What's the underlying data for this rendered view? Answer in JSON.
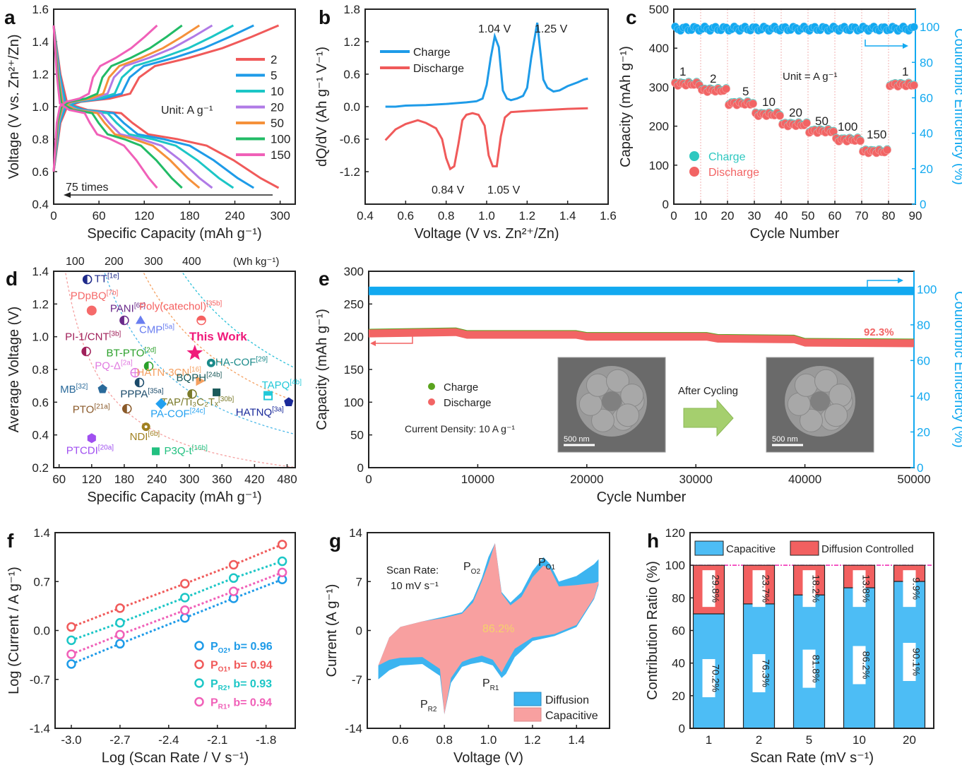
{
  "colors": {
    "red": "#f05a5a",
    "blue": "#1e9be8",
    "cyan": "#1cc6c6",
    "purple": "#b07ae6",
    "orange": "#f5913a",
    "green": "#22bb66",
    "pink": "#f060b8",
    "ce_blue": "#12a9f0",
    "charge_teal": "#2ec8c0",
    "discharge_red": "#f26464",
    "green_e": "#5aa31e",
    "bar_blue": "#4dbdf5",
    "bar_red": "#f26060",
    "cap_pink": "#f8a0a0",
    "diff_blue": "#3cb4f0"
  },
  "chart_data": [
    {
      "panel": "a",
      "type": "line",
      "panel_label": "a",
      "xlabel": "Specific Capacity (mAh g⁻¹)",
      "ylabel": "Voltage (V vs. Zn²⁺/Zn)",
      "xlim": [
        0,
        320
      ],
      "ylim": [
        0.4,
        1.6
      ],
      "xticks": [
        0,
        60,
        120,
        180,
        240,
        300
      ],
      "yticks": [
        0.4,
        0.6,
        0.8,
        1.0,
        1.2,
        1.4,
        1.6
      ],
      "annotation_unit": "Unit: A g⁻¹",
      "annotation_arrow": "75 times",
      "legend_placement": "right",
      "series": [
        {
          "name": "2",
          "color_key": "red",
          "capacity": 298
        },
        {
          "name": "5",
          "color_key": "blue",
          "capacity": 265
        },
        {
          "name": "10",
          "color_key": "cyan",
          "capacity": 238
        },
        {
          "name": "20",
          "color_key": "purple",
          "capacity": 210
        },
        {
          "name": "50",
          "color_key": "orange",
          "capacity": 193
        },
        {
          "name": "100",
          "color_key": "green",
          "capacity": 170
        },
        {
          "name": "150",
          "color_key": "pink",
          "capacity": 137
        }
      ]
    },
    {
      "panel": "b",
      "type": "line",
      "panel_label": "b",
      "xlabel": "Voltage (V vs. Zn²⁺/Zn)",
      "ylabel": "dQ/dV (Ah g⁻¹ V⁻¹)",
      "xlim": [
        0.4,
        1.6
      ],
      "ylim": [
        -1.8,
        1.8
      ],
      "xticks": [
        0.4,
        0.6,
        0.8,
        1.0,
        1.2,
        1.4,
        1.6
      ],
      "yticks": [
        -1.2,
        -0.6,
        0.0,
        0.6,
        1.2,
        1.8
      ],
      "legend_placement": "top-left",
      "series": [
        {
          "name": "Charge",
          "color_key": "blue",
          "x": [
            0.5,
            0.55,
            0.6,
            0.7,
            0.8,
            0.9,
            0.95,
            0.98,
            1.0,
            1.02,
            1.04,
            1.06,
            1.08,
            1.1,
            1.12,
            1.15,
            1.18,
            1.2,
            1.22,
            1.25,
            1.28,
            1.3,
            1.33,
            1.36,
            1.4,
            1.45,
            1.48,
            1.5
          ],
          "y": [
            0.0,
            0.0,
            0.02,
            0.03,
            0.05,
            0.08,
            0.1,
            0.15,
            0.4,
            0.9,
            1.3,
            1.1,
            0.3,
            0.15,
            0.12,
            0.15,
            0.2,
            0.35,
            0.9,
            1.55,
            0.5,
            0.35,
            0.28,
            0.3,
            0.38,
            0.45,
            0.5,
            0.52
          ]
        },
        {
          "name": "Discharge",
          "color_key": "red",
          "x": [
            0.5,
            0.55,
            0.6,
            0.66,
            0.7,
            0.75,
            0.78,
            0.8,
            0.82,
            0.84,
            0.86,
            0.88,
            0.9,
            0.93,
            0.96,
            0.99,
            1.01,
            1.03,
            1.05,
            1.07,
            1.09,
            1.12,
            1.2,
            1.3,
            1.4,
            1.5
          ],
          "y": [
            -0.62,
            -0.42,
            -0.32,
            -0.25,
            -0.3,
            -0.4,
            -0.6,
            -0.95,
            -1.15,
            -1.1,
            -0.7,
            -0.25,
            -0.15,
            -0.12,
            -0.15,
            -0.35,
            -0.9,
            -1.1,
            -1.1,
            -0.55,
            -0.2,
            -0.1,
            -0.08,
            -0.06,
            -0.04,
            -0.03
          ]
        }
      ],
      "annotations": [
        "1.04 V",
        "1.25 V",
        "0.84 V",
        "1.05 V"
      ]
    },
    {
      "panel": "c",
      "type": "scatter",
      "panel_label": "c",
      "xlabel": "Cycle Number",
      "ylabel": "Capacity (mAh g⁻¹)",
      "y2label": "Coulombic Efficiency (%)",
      "xlim": [
        0,
        90
      ],
      "ylim": [
        0,
        500
      ],
      "y2lim": [
        0,
        110
      ],
      "xticks": [
        0,
        10,
        20,
        30,
        40,
        50,
        60,
        70,
        80,
        90
      ],
      "yticks": [
        0,
        100,
        200,
        300,
        400,
        500
      ],
      "y2ticks": [
        0,
        20,
        40,
        60,
        80,
        100
      ],
      "annotation_unit": "Unit = A g⁻¹",
      "legend": [
        "Charge",
        "Discharge"
      ],
      "legend_placement": "bottom-left",
      "rate_segments": [
        {
          "label": "1",
          "start": 1,
          "end": 10,
          "capacity": 308
        },
        {
          "label": "2",
          "start": 11,
          "end": 20,
          "capacity": 292
        },
        {
          "label": "5",
          "start": 21,
          "end": 30,
          "capacity": 258
        },
        {
          "label": "10",
          "start": 31,
          "end": 40,
          "capacity": 230
        },
        {
          "label": "20",
          "start": 41,
          "end": 50,
          "capacity": 204
        },
        {
          "label": "50",
          "start": 51,
          "end": 60,
          "capacity": 187
        },
        {
          "label": "100",
          "start": 61,
          "end": 70,
          "capacity": 165
        },
        {
          "label": "150",
          "start": 71,
          "end": 80,
          "capacity": 135
        },
        {
          "label": "1",
          "start": 81,
          "end": 90,
          "capacity": 306
        }
      ],
      "coulombic_efficiency_avg": 99
    },
    {
      "panel": "d",
      "type": "scatter",
      "panel_label": "d",
      "xlabel": "Specific Capacity (mAh g⁻¹)",
      "ylabel": "Average Voltage (V)",
      "top_axis_label": "(Wh kg⁻¹)",
      "top_ticks": [
        "100",
        "200",
        "300",
        "400"
      ],
      "xlim": [
        50,
        495
      ],
      "ylim": [
        0.2,
        1.4
      ],
      "xticks": [
        60,
        120,
        180,
        240,
        300,
        360,
        420,
        480
      ],
      "yticks": [
        0.2,
        0.4,
        0.6,
        0.8,
        1.0,
        1.2,
        1.4
      ],
      "energy_contours_wh": [
        100,
        200,
        300,
        400
      ],
      "points": [
        {
          "name": "TT",
          "ref": "[1e]",
          "x": 112,
          "y": 1.35,
          "color": "#1e2a8a",
          "marker": "half-circle"
        },
        {
          "name": "PDpBQ",
          "ref": "[7b]",
          "x": 120,
          "y": 1.16,
          "color": "#f56a6a",
          "marker": "circle"
        },
        {
          "name": "PANI",
          "ref": "[6c]",
          "x": 180,
          "y": 1.1,
          "color": "#6a2a8a",
          "marker": "half-circle"
        },
        {
          "name": "CMP",
          "ref": "[5a]",
          "x": 210,
          "y": 1.1,
          "color": "#6a7ef0",
          "marker": "triangle"
        },
        {
          "name": "Poly(catechol)",
          "ref": "[35b]",
          "x": 322,
          "y": 1.1,
          "color": "#f56060",
          "marker": "half-circle-h"
        },
        {
          "name": "PI-1/CNT",
          "ref": "[3b]",
          "x": 110,
          "y": 0.91,
          "color": "#a0205a",
          "marker": "half-circle"
        },
        {
          "name": "This Work",
          "ref": "",
          "x": 310,
          "y": 0.9,
          "color": "#f01a7a",
          "marker": "star"
        },
        {
          "name": "BT-PTO",
          "ref": "[2d]",
          "x": 225,
          "y": 0.82,
          "color": "#2aa02a",
          "marker": "half-circle"
        },
        {
          "name": "HA-COF",
          "ref": "[29]",
          "x": 340,
          "y": 0.84,
          "color": "#1a8a8a",
          "marker": "circle-dot"
        },
        {
          "name": "PQ-Δ",
          "ref": "[2a]",
          "x": 200,
          "y": 0.78,
          "color": "#e07ae0",
          "marker": "crosshair"
        },
        {
          "name": "HATN-3CN",
          "ref": "[16]",
          "x": 320,
          "y": 0.73,
          "color": "#f5a060",
          "marker": "triangle-right"
        },
        {
          "name": "BQPH",
          "ref": "[24b]",
          "x": 350,
          "y": 0.66,
          "color": "#1a5a5a",
          "marker": "square"
        },
        {
          "name": "TAPQ",
          "ref": "[4b]",
          "x": 445,
          "y": 0.64,
          "color": "#22c8d8",
          "marker": "square-half"
        },
        {
          "name": "PPPA",
          "ref": "[35a]",
          "x": 208,
          "y": 0.72,
          "color": "#1a4a6a",
          "marker": "half-circle"
        },
        {
          "name": "MB",
          "ref": "[32]",
          "x": 140,
          "y": 0.68,
          "color": "#2a6a9a",
          "marker": "pentagon"
        },
        {
          "name": "TAP/Ti₃C₂Tₓ",
          "ref": "[30b]",
          "x": 305,
          "y": 0.65,
          "color": "#7a7a2a",
          "marker": "half-circle"
        },
        {
          "name": "PA-COF",
          "ref": "[24c]",
          "x": 248,
          "y": 0.59,
          "color": "#22a0f0",
          "marker": "diamond"
        },
        {
          "name": "HATNQ",
          "ref": "[3a]",
          "x": 483,
          "y": 0.6,
          "color": "#1a2a9a",
          "marker": "pentagon"
        },
        {
          "name": "PTO",
          "ref": "[21a]",
          "x": 185,
          "y": 0.56,
          "color": "#8a5a2a",
          "marker": "half-circle"
        },
        {
          "name": "NDI",
          "ref": "[6b]",
          "x": 220,
          "y": 0.45,
          "color": "#a08020",
          "marker": "circle-dot"
        },
        {
          "name": "PTCDI",
          "ref": "[20a]",
          "x": 120,
          "y": 0.38,
          "color": "#a050f0",
          "marker": "hexagon"
        },
        {
          "name": "P3Q-t",
          "ref": "[16b]",
          "x": 238,
          "y": 0.3,
          "color": "#22c080",
          "marker": "square"
        }
      ]
    },
    {
      "panel": "e",
      "type": "scatter",
      "panel_label": "e",
      "xlabel": "Cycle Number",
      "ylabel": "Capacity (mAh g⁻¹)",
      "y2label": "Coulombic Efficiency (%)",
      "xlim": [
        0,
        50000
      ],
      "ylim": [
        0,
        300
      ],
      "y2lim": [
        0,
        110
      ],
      "xticks": [
        0,
        10000,
        20000,
        30000,
        40000,
        50000
      ],
      "yticks": [
        0,
        50,
        100,
        150,
        200,
        250,
        300
      ],
      "y2ticks": [
        0,
        20,
        40,
        60,
        80,
        100
      ],
      "legend": [
        "Charge",
        "Discharge"
      ],
      "annotation_current": "Current Density: 10 A g⁻¹",
      "annotation_retention": "92.3%",
      "inset_arrow_label": "After Cycling",
      "scale_bar": "500 nm",
      "capacity_trend": {
        "x": [
          0,
          8000,
          9000,
          19000,
          20000,
          31000,
          32000,
          39000,
          40000,
          50000
        ],
        "y": [
          205,
          207,
          203,
          203,
          200,
          200,
          197,
          196,
          191,
          190
        ]
      },
      "coulombic_efficiency_avg": 99
    },
    {
      "panel": "f",
      "type": "scatter",
      "panel_label": "f",
      "xlabel": "Log (Scan Rate / V s⁻¹)",
      "ylabel": "Log (Current / A g⁻¹)",
      "xlim": [
        -3.1,
        -1.6
      ],
      "ylim": [
        -1.4,
        1.4
      ],
      "xticks": [
        -3.0,
        -2.7,
        -2.4,
        -2.1,
        -1.8
      ],
      "yticks": [
        -1.4,
        -0.7,
        0.0,
        0.7,
        1.4
      ],
      "x": [
        -3.0,
        -2.7,
        -2.3,
        -2.0,
        -1.7
      ],
      "legend_placement": "bottom-right",
      "series": [
        {
          "name": "P_O2",
          "sub": "O2",
          "b": "b= 0.96",
          "color_key": "blue",
          "y": [
            -0.48,
            -0.19,
            0.18,
            0.46,
            0.73
          ]
        },
        {
          "name": "P_O1",
          "sub": "O1",
          "b": "b= 0.94",
          "color_key": "red",
          "y": [
            0.05,
            0.32,
            0.67,
            0.94,
            1.23
          ]
        },
        {
          "name": "P_R2",
          "sub": "R2",
          "b": "b= 0.93",
          "color_key": "cyan",
          "y": [
            -0.14,
            0.11,
            0.47,
            0.75,
            0.99
          ]
        },
        {
          "name": "P_R1",
          "sub": "R1",
          "b": "b= 0.94",
          "color_key": "pink",
          "y": [
            -0.34,
            -0.06,
            0.29,
            0.56,
            0.83
          ]
        }
      ]
    },
    {
      "panel": "g",
      "type": "area",
      "panel_label": "g",
      "xlabel": "Voltage (V)",
      "ylabel": "Current (A g⁻¹)",
      "xlim": [
        0.45,
        1.55
      ],
      "ylim": [
        -14,
        14
      ],
      "xticks": [
        0.6,
        0.8,
        1.0,
        1.2,
        1.4
      ],
      "yticks": [
        -14,
        -7,
        0,
        7,
        14
      ],
      "annotation_scan": [
        "Scan Rate:",
        "10 mV s⁻¹"
      ],
      "annotation_ratio": "86.2%",
      "peak_labels": [
        {
          "label": "P",
          "sub": "O2"
        },
        {
          "label": "P",
          "sub": "O1"
        },
        {
          "label": "P",
          "sub": "R1"
        },
        {
          "label": "P",
          "sub": "R2"
        }
      ],
      "legend": [
        "Diffusion",
        "Capacitive"
      ],
      "legend_placement": "bottom-right",
      "total_upper": {
        "x": [
          0.5,
          0.55,
          0.6,
          0.7,
          0.8,
          0.88,
          0.93,
          0.97,
          1.0,
          1.03,
          1.06,
          1.1,
          1.15,
          1.2,
          1.25,
          1.28,
          1.32,
          1.4,
          1.48,
          1.5
        ],
        "y": [
          -5,
          -1,
          0.5,
          1.3,
          2,
          2.6,
          4.5,
          7.5,
          10.5,
          12.5,
          5.5,
          4,
          5.5,
          8.5,
          10.5,
          9.5,
          7,
          7.8,
          9.5,
          10.2
        ]
      },
      "total_lower": {
        "x": [
          0.5,
          0.55,
          0.6,
          0.7,
          0.78,
          0.8,
          0.83,
          0.88,
          0.92,
          0.97,
          1.02,
          1.06,
          1.08,
          1.12,
          1.2,
          1.3,
          1.4,
          1.48,
          1.5
        ],
        "y": [
          -7,
          -5.7,
          -5,
          -4.8,
          -6.5,
          -12,
          -7.5,
          -5.2,
          -4.8,
          -4.5,
          -5,
          -6.8,
          -6.2,
          -3.8,
          -1.5,
          -0.8,
          0.5,
          4.5,
          6.5
        ]
      },
      "cap_upper": {
        "x": [
          0.5,
          0.55,
          0.6,
          0.7,
          0.8,
          0.88,
          0.93,
          0.97,
          1.0,
          1.03,
          1.06,
          1.1,
          1.15,
          1.2,
          1.25,
          1.28,
          1.32,
          1.4,
          1.48,
          1.5
        ],
        "y": [
          -5,
          -1,
          0.5,
          1.3,
          1.8,
          2.4,
          4,
          7,
          9.5,
          12.5,
          5.3,
          3.6,
          4.8,
          7.6,
          9.3,
          8.8,
          6.3,
          6.5,
          6.8,
          7
        ]
      },
      "cap_lower": {
        "x": [
          0.5,
          0.55,
          0.6,
          0.7,
          0.78,
          0.8,
          0.83,
          0.88,
          0.92,
          0.97,
          1.02,
          1.06,
          1.08,
          1.12,
          1.2,
          1.3,
          1.4,
          1.48,
          1.5
        ],
        "y": [
          -5,
          -4.2,
          -3.9,
          -3.8,
          -5.5,
          -12,
          -6.8,
          -4.5,
          -4,
          -3.6,
          -4.2,
          -6,
          -4.8,
          -2.6,
          -1,
          -0.5,
          0.8,
          4.7,
          6.8
        ]
      }
    },
    {
      "panel": "h",
      "type": "bar",
      "panel_label": "h",
      "xlabel": "Scan Rate (mV s⁻¹)",
      "ylabel": "Contribution Ratio (%)",
      "categories": [
        "1",
        "2",
        "5",
        "10",
        "20"
      ],
      "ylim": [
        0,
        120
      ],
      "yticks": [
        0,
        20,
        40,
        60,
        80,
        100,
        120
      ],
      "legend_placement": "top",
      "series": [
        {
          "name": "Capacitive",
          "color_key": "bar_blue",
          "values": [
            70.2,
            76.3,
            81.8,
            86.2,
            90.1
          ],
          "labels": [
            "70.2%",
            "76.3%",
            "81.8%",
            "86.2%",
            "90.1%"
          ]
        },
        {
          "name": "Diffusion Controlled",
          "color_key": "bar_red",
          "values": [
            29.8,
            23.7,
            18.2,
            13.8,
            9.9
          ],
          "labels": [
            "29.8%",
            "23.7%",
            "18.2%",
            "13.8%",
            "9.9%"
          ]
        }
      ],
      "reference_line": 100
    }
  ]
}
